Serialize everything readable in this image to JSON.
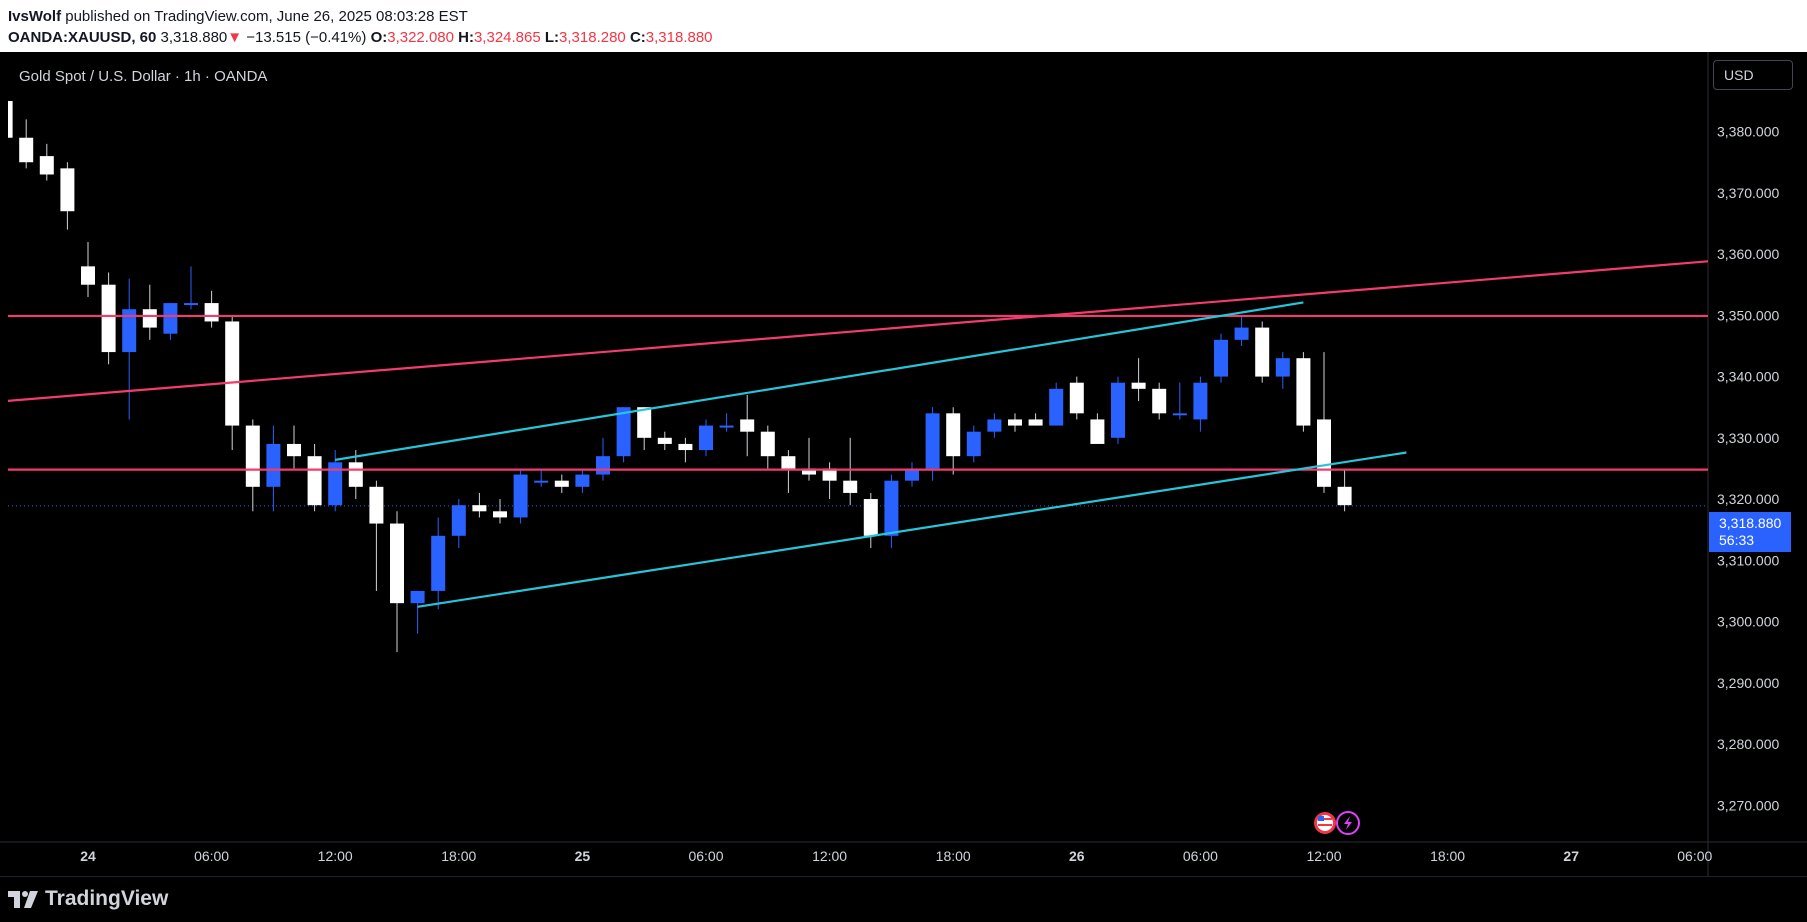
{
  "header": {
    "author": "IvsWolf",
    "published_text": "published on TradingView.com, June 26, 2025 08:03:28 EST",
    "symbol": "OANDA:XAUUSD, 60",
    "last": "3,318.880",
    "change_arrow": "▼",
    "change": "−13.515 (−0.41%)",
    "o_label": "O:",
    "o": "3,322.080",
    "h_label": "H:",
    "h": "3,324.865",
    "l_label": "L:",
    "l": "3,318.280",
    "c_label": "C:",
    "c": "3,318.880"
  },
  "chart_title": "Gold Spot / U.S. Dollar · 1h · OANDA",
  "currency": "USD",
  "last_price_label": {
    "price": "3,318.880",
    "countdown": "56:33"
  },
  "footer": {
    "brand": "TradingView"
  },
  "colors": {
    "up": "#2962ff",
    "down": "#ffffff",
    "wick": "#d1d4dc",
    "red_lines": "#f23b6f",
    "channel": "#26c6da",
    "axis_text": "#d1d4dc"
  },
  "icons": [
    "us-flag-icon",
    "lightning-icon",
    "tradingview-logo-icon"
  ],
  "chart_data": {
    "type": "candlestick",
    "title": "Gold Spot / U.S. Dollar · 1h · OANDA",
    "ylim": [
      3264,
      3393
    ],
    "y_ticks": [
      3270,
      3280,
      3290,
      3300,
      3310,
      3320,
      3330,
      3340,
      3350,
      3360,
      3370,
      3380
    ],
    "y_tick_labels": [
      "3,270.000",
      "3,280.000",
      "3,290.000",
      "3,300.000",
      "3,310.000",
      "3,320.000",
      "3,330.000",
      "3,340.000",
      "3,350.000",
      "3,360.000",
      "3,370.000",
      "3,380.000"
    ],
    "x_ticks": [
      {
        "label": "24",
        "t": 0,
        "bold": true
      },
      {
        "label": "06:00",
        "t": 6
      },
      {
        "label": "12:00",
        "t": 12
      },
      {
        "label": "18:00",
        "t": 18
      },
      {
        "label": "25",
        "t": 24,
        "bold": true
      },
      {
        "label": "06:00",
        "t": 30
      },
      {
        "label": "12:00",
        "t": 36
      },
      {
        "label": "18:00",
        "t": 42
      },
      {
        "label": "26",
        "t": 48,
        "bold": true
      },
      {
        "label": "06:00",
        "t": 54
      },
      {
        "label": "12:00",
        "t": 60
      },
      {
        "label": "18:00",
        "t": 66
      },
      {
        "label": "27",
        "t": 72,
        "bold": true
      },
      {
        "label": "06:00",
        "t": 78
      }
    ],
    "candles": [
      {
        "t": -4,
        "o": 3385,
        "h": 3386,
        "l": 3378,
        "c": 3379
      },
      {
        "t": -3,
        "o": 3379,
        "h": 3382,
        "l": 3374,
        "c": 3375
      },
      {
        "t": -2,
        "o": 3376,
        "h": 3378,
        "l": 3372,
        "c": 3373
      },
      {
        "t": -1,
        "o": 3374,
        "h": 3375,
        "l": 3364,
        "c": 3367
      },
      {
        "t": 0,
        "o": 3358,
        "h": 3362,
        "l": 3353,
        "c": 3355
      },
      {
        "t": 1,
        "o": 3355,
        "h": 3357,
        "l": 3342,
        "c": 3344
      },
      {
        "t": 2,
        "o": 3344,
        "h": 3356,
        "l": 3333,
        "c": 3351
      },
      {
        "t": 3,
        "o": 3351,
        "h": 3355,
        "l": 3346,
        "c": 3348
      },
      {
        "t": 4,
        "o": 3347,
        "h": 3352,
        "l": 3346,
        "c": 3352
      },
      {
        "t": 5,
        "o": 3352,
        "h": 3358,
        "l": 3351,
        "c": 3352
      },
      {
        "t": 6,
        "o": 3352,
        "h": 3354,
        "l": 3348,
        "c": 3349
      },
      {
        "t": 7,
        "o": 3349,
        "h": 3350,
        "l": 3328,
        "c": 3332
      },
      {
        "t": 8,
        "o": 3332,
        "h": 3333,
        "l": 3318,
        "c": 3322
      },
      {
        "t": 9,
        "o": 3322,
        "h": 3332,
        "l": 3318,
        "c": 3329
      },
      {
        "t": 10,
        "o": 3329,
        "h": 3332,
        "l": 3325,
        "c": 3327
      },
      {
        "t": 11,
        "o": 3327,
        "h": 3329,
        "l": 3318,
        "c": 3319
      },
      {
        "t": 12,
        "o": 3319,
        "h": 3328,
        "l": 3318,
        "c": 3326
      },
      {
        "t": 13,
        "o": 3326,
        "h": 3328,
        "l": 3320,
        "c": 3322
      },
      {
        "t": 14,
        "o": 3322,
        "h": 3323,
        "l": 3305,
        "c": 3316
      },
      {
        "t": 15,
        "o": 3316,
        "h": 3318,
        "l": 3295,
        "c": 3303
      },
      {
        "t": 16,
        "o": 3303,
        "h": 3305,
        "l": 3298,
        "c": 3305
      },
      {
        "t": 17,
        "o": 3305,
        "h": 3317,
        "l": 3302,
        "c": 3314
      },
      {
        "t": 18,
        "o": 3314,
        "h": 3320,
        "l": 3312,
        "c": 3319
      },
      {
        "t": 19,
        "o": 3319,
        "h": 3321,
        "l": 3317,
        "c": 3318
      },
      {
        "t": 20,
        "o": 3318,
        "h": 3320,
        "l": 3316,
        "c": 3317
      },
      {
        "t": 21,
        "o": 3317,
        "h": 3325,
        "l": 3316,
        "c": 3324
      },
      {
        "t": 22,
        "o": 3323,
        "h": 3325,
        "l": 3322,
        "c": 3323
      },
      {
        "t": 23,
        "o": 3323,
        "h": 3324,
        "l": 3321,
        "c": 3322
      },
      {
        "t": 24,
        "o": 3322,
        "h": 3325,
        "l": 3321,
        "c": 3324
      },
      {
        "t": 25,
        "o": 3324,
        "h": 3330,
        "l": 3323,
        "c": 3327
      },
      {
        "t": 26,
        "o": 3327,
        "h": 3335,
        "l": 3326,
        "c": 3335
      },
      {
        "t": 27,
        "o": 3335,
        "h": 3335,
        "l": 3328,
        "c": 3330
      },
      {
        "t": 28,
        "o": 3330,
        "h": 3331,
        "l": 3328,
        "c": 3329
      },
      {
        "t": 29,
        "o": 3329,
        "h": 3330,
        "l": 3326,
        "c": 3328
      },
      {
        "t": 30,
        "o": 3328,
        "h": 3333,
        "l": 3327,
        "c": 3332
      },
      {
        "t": 31,
        "o": 3332,
        "h": 3334,
        "l": 3331,
        "c": 3332
      },
      {
        "t": 32,
        "o": 3333,
        "h": 3337,
        "l": 3327,
        "c": 3331
      },
      {
        "t": 33,
        "o": 3331,
        "h": 3332,
        "l": 3325,
        "c": 3327
      },
      {
        "t": 34,
        "o": 3327,
        "h": 3328,
        "l": 3321,
        "c": 3325
      },
      {
        "t": 35,
        "o": 3325,
        "h": 3330,
        "l": 3323,
        "c": 3324
      },
      {
        "t": 36,
        "o": 3325,
        "h": 3326,
        "l": 3320,
        "c": 3323
      },
      {
        "t": 37,
        "o": 3323,
        "h": 3330,
        "l": 3319,
        "c": 3321
      },
      {
        "t": 38,
        "o": 3320,
        "h": 3321,
        "l": 3312,
        "c": 3314
      },
      {
        "t": 39,
        "o": 3314,
        "h": 3324,
        "l": 3312,
        "c": 3323
      },
      {
        "t": 40,
        "o": 3323,
        "h": 3326,
        "l": 3322,
        "c": 3325
      },
      {
        "t": 41,
        "o": 3325,
        "h": 3335,
        "l": 3323,
        "c": 3334
      },
      {
        "t": 42,
        "o": 3334,
        "h": 3335,
        "l": 3324,
        "c": 3327
      },
      {
        "t": 43,
        "o": 3327,
        "h": 3332,
        "l": 3326,
        "c": 3331
      },
      {
        "t": 44,
        "o": 3331,
        "h": 3334,
        "l": 3330,
        "c": 3333
      },
      {
        "t": 45,
        "o": 3333,
        "h": 3334,
        "l": 3331,
        "c": 3332
      },
      {
        "t": 46,
        "o": 3333,
        "h": 3334,
        "l": 3332,
        "c": 3332
      },
      {
        "t": 47,
        "o": 3332,
        "h": 3339,
        "l": 3332,
        "c": 3338
      },
      {
        "t": 48,
        "o": 3339,
        "h": 3340,
        "l": 3333,
        "c": 3334
      },
      {
        "t": 49,
        "o": 3333,
        "h": 3334,
        "l": 3329,
        "c": 3329
      },
      {
        "t": 50,
        "o": 3330,
        "h": 3340,
        "l": 3329,
        "c": 3339
      },
      {
        "t": 51,
        "o": 3339,
        "h": 3343,
        "l": 3336,
        "c": 3338
      },
      {
        "t": 52,
        "o": 3338,
        "h": 3339,
        "l": 3333,
        "c": 3334
      },
      {
        "t": 53,
        "o": 3334,
        "h": 3339,
        "l": 3333,
        "c": 3334
      },
      {
        "t": 54,
        "o": 3333,
        "h": 3340,
        "l": 3331,
        "c": 3339
      },
      {
        "t": 55,
        "o": 3340,
        "h": 3347,
        "l": 3339,
        "c": 3346
      },
      {
        "t": 56,
        "o": 3346,
        "h": 3350,
        "l": 3345,
        "c": 3348
      },
      {
        "t": 57,
        "o": 3348,
        "h": 3349,
        "l": 3339,
        "c": 3340
      },
      {
        "t": 58,
        "o": 3340,
        "h": 3344,
        "l": 3338,
        "c": 3343
      },
      {
        "t": 59,
        "o": 3343,
        "h": 3344,
        "l": 3331,
        "c": 3332
      },
      {
        "t": 60,
        "o": 3333,
        "h": 3344,
        "l": 3321,
        "c": 3322
      },
      {
        "t": 61,
        "o": 3322,
        "h": 3325,
        "l": 3318,
        "c": 3319
      }
    ],
    "lines": [
      {
        "name": "horizontal-resistance",
        "color": "red",
        "t1": -4,
        "y1": 3349.9,
        "t2": 80,
        "y2": 3349.9
      },
      {
        "name": "horizontal-support",
        "color": "red",
        "t1": -4,
        "y1": 3324.8,
        "t2": 80,
        "y2": 3324.8
      },
      {
        "name": "rising-trendline",
        "color": "red",
        "t1": -4,
        "y1": 3336.0,
        "t2": 80,
        "y2": 3359.2
      },
      {
        "name": "channel-upper",
        "color": "cyan",
        "t1": 12,
        "y1": 3326.4,
        "t2": 59,
        "y2": 3352.1
      },
      {
        "name": "channel-lower",
        "color": "cyan",
        "t1": 16,
        "y1": 3302.4,
        "t2": 64,
        "y2": 3327.6
      }
    ],
    "last_price": 3318.88
  }
}
